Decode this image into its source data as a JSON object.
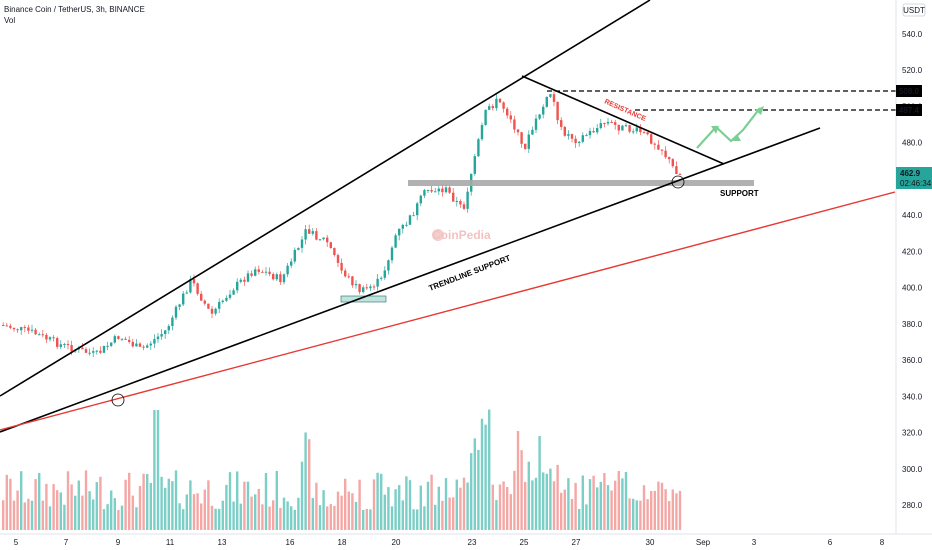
{
  "header": {
    "title": "Binance Coin / TetherUS, 3h, BINANCE",
    "volume_label": "Vol",
    "currency": "USDT"
  },
  "price_axis": {
    "ticks": [
      "540.0",
      "520.0",
      "500.0",
      "480.0",
      "460.0",
      "440.0",
      "420.0",
      "400.0",
      "380.0",
      "360.0",
      "340.0",
      "320.0",
      "300.0",
      "280.0"
    ]
  },
  "time_axis": {
    "ticks": [
      "5",
      "7",
      "9",
      "11",
      "13",
      "16",
      "18",
      "20",
      "23",
      "25",
      "27",
      "30",
      "Sep",
      "3",
      "6",
      "8"
    ]
  },
  "price_labels": {
    "level_1": "508.0",
    "level_2": "497.4",
    "current_price": "462.9",
    "countdown": "02:46:34"
  },
  "annotations": {
    "resistance": "RESISTANCE",
    "support": "SUPPORT",
    "trendline_support": "TRENDLINE SUPPORT"
  },
  "colors": {
    "up": "#26a69a",
    "down": "#ef5350",
    "up_volume": "#7ccfc6",
    "down_volume": "#f3a8a6",
    "red_trendline": "#e53935",
    "line": "#000000",
    "support_zone": "#a9a9a9",
    "arrow": "#7ccf94"
  },
  "chart_data": {
    "type": "candlestick",
    "symbol": "BNBUSDT",
    "interval": "3h",
    "price_range": [
      270,
      548
    ],
    "ohlc": [],
    "volume": []
  }
}
